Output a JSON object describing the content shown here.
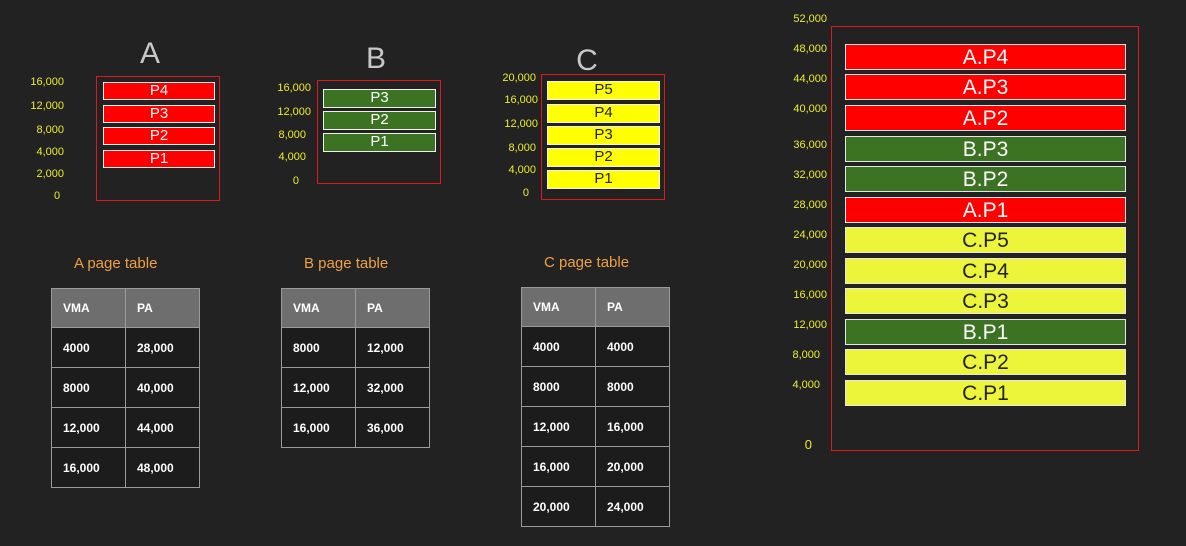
{
  "processes": [
    {
      "label": "A",
      "addresses": [
        "16,000",
        "12,000",
        "8,000",
        "4,000",
        "2,000",
        "0"
      ],
      "pages": [
        "P4",
        "P3",
        "P2",
        "P1"
      ],
      "color": "#ff0000"
    },
    {
      "label": "B",
      "addresses": [
        "16,000",
        "12,000",
        "8,000",
        "4,000",
        "0"
      ],
      "pages": [
        "P3",
        "P2",
        "P1"
      ],
      "color": "#3b7322"
    },
    {
      "label": "C",
      "addresses": [
        "20,000",
        "16,000",
        "12,000",
        "8,000",
        "4,000",
        "0"
      ],
      "pages": [
        "P5",
        "P4",
        "P3",
        "P2",
        "P1"
      ],
      "color": "#ffff00"
    }
  ],
  "page_tables": [
    {
      "title": "A page table",
      "headers": [
        "VMA",
        "PA"
      ],
      "rows": [
        [
          "4000",
          "28,000"
        ],
        [
          "8000",
          "40,000"
        ],
        [
          "12,000",
          "44,000"
        ],
        [
          "16,000",
          "48,000"
        ]
      ]
    },
    {
      "title": "B page table",
      "headers": [
        "VMA",
        "PA"
      ],
      "rows": [
        [
          "8000",
          "12,000"
        ],
        [
          "12,000",
          "32,000"
        ],
        [
          "16,000",
          "36,000"
        ]
      ]
    },
    {
      "title": "C page table",
      "headers": [
        "VMA",
        "PA"
      ],
      "rows": [
        [
          "4000",
          "4000"
        ],
        [
          "8000",
          "8000"
        ],
        [
          "12,000",
          "16,000"
        ],
        [
          "16,000",
          "20,000"
        ],
        [
          "20,000",
          "24,000"
        ]
      ]
    }
  ],
  "physical_memory": {
    "addresses": [
      "52,000",
      "48,000",
      "44,000",
      "40,000",
      "36,000",
      "32,000",
      "28,000",
      "24,000",
      "20,000",
      "16,000",
      "12,000",
      "8,000",
      "4,000",
      "0"
    ],
    "frames": [
      {
        "label": "A.P4",
        "color": "red"
      },
      {
        "label": "A.P3",
        "color": "red"
      },
      {
        "label": "A.P2",
        "color": "red"
      },
      {
        "label": "B.P3",
        "color": "green"
      },
      {
        "label": "B.P2",
        "color": "green"
      },
      {
        "label": "A.P1",
        "color": "red"
      },
      {
        "label": "C.P5",
        "color": "yellow"
      },
      {
        "label": "C.P4",
        "color": "yellow"
      },
      {
        "label": "C.P3",
        "color": "yellow"
      },
      {
        "label": "B.P1",
        "color": "green"
      },
      {
        "label": "C.P2",
        "color": "yellow"
      },
      {
        "label": "C.P1",
        "color": "yellow"
      }
    ]
  },
  "colors": {
    "red": "#ff0000",
    "green": "#3b7322",
    "yellow": "#ffff00",
    "border": "#e01818",
    "address_text": "#ecec30",
    "table_title": "#f0a043"
  }
}
